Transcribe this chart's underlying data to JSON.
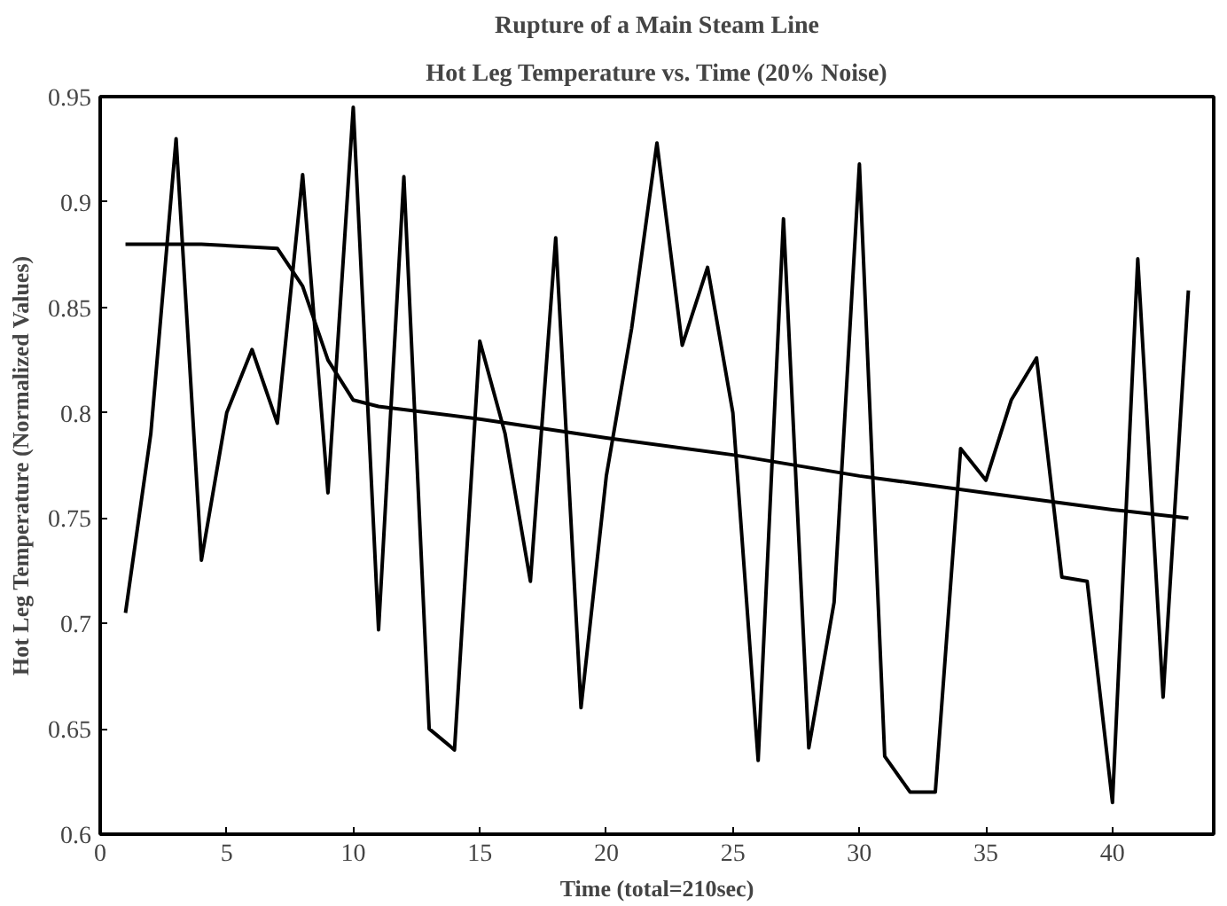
{
  "chart_data": {
    "type": "line",
    "title": "Rupture of a Main Steam Line",
    "subtitle": "Hot Leg Temperature vs. Time (20% Noise)",
    "xlabel": "Time (total=210sec)",
    "ylabel": "Hot Leg Temperature (Normalized Values)",
    "xlim": [
      0,
      44
    ],
    "ylim": [
      0.6,
      0.95
    ],
    "xticks": [
      0,
      5,
      10,
      15,
      20,
      25,
      30,
      35,
      40
    ],
    "yticks": [
      0.6,
      0.65,
      0.7,
      0.75,
      0.8,
      0.85,
      0.9,
      0.95
    ],
    "grid": false,
    "marker": "none",
    "line_style": "solid",
    "series": [
      {
        "color": "#000000",
        "x": [
          1,
          2,
          3,
          4,
          5,
          6,
          7,
          8,
          9,
          10,
          11,
          12,
          13,
          14,
          15,
          16,
          17,
          18,
          19,
          20,
          21,
          22,
          23,
          24,
          25,
          26,
          27,
          28,
          29,
          30,
          31,
          32,
          33,
          34,
          35,
          36,
          37,
          38,
          39,
          40,
          41,
          42,
          43
        ],
        "values": [
          0.705,
          0.79,
          0.93,
          0.73,
          0.8,
          0.83,
          0.795,
          0.913,
          0.762,
          0.945,
          0.697,
          0.912,
          0.65,
          0.64,
          0.834,
          0.79,
          0.72,
          0.883,
          0.66,
          0.77,
          0.84,
          0.928,
          0.832,
          0.869,
          0.8,
          0.635,
          0.892,
          0.641,
          0.71,
          0.918,
          0.637,
          0.62,
          0.62,
          0.783,
          0.768,
          0.806,
          0.826,
          0.722,
          0.72,
          0.615,
          0.873,
          0.665,
          0.858
        ]
      },
      {
        "color": "#000000",
        "x": [
          1,
          4,
          7,
          8,
          9,
          10,
          11,
          15,
          20,
          25,
          30,
          35,
          40,
          43
        ],
        "values": [
          0.88,
          0.88,
          0.878,
          0.86,
          0.825,
          0.806,
          0.803,
          0.797,
          0.788,
          0.78,
          0.77,
          0.762,
          0.754,
          0.75
        ]
      }
    ]
  }
}
